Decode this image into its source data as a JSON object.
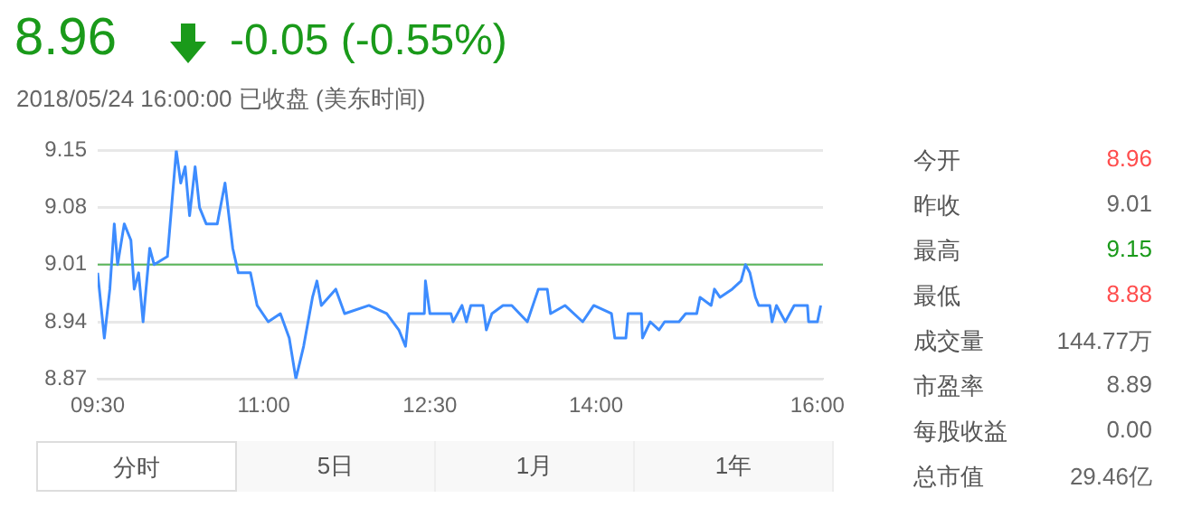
{
  "chart_data": [
    {
      "type": "line",
      "title": "8.96",
      "subtitle": "2018/05/24 16:00:00   已收盘   (美东时间)",
      "annotations": [
        "-0.05 (-0.55%)"
      ],
      "x": [
        9.5,
        9.56,
        9.61,
        9.65,
        9.68,
        9.74,
        9.8,
        9.83,
        9.87,
        9.91,
        9.97,
        10.01,
        10.13,
        10.21,
        10.25,
        10.29,
        10.33,
        10.38,
        10.42,
        10.48,
        10.58,
        10.65,
        10.72,
        10.77,
        10.88,
        10.94,
        11.04,
        11.15,
        11.23,
        11.29,
        11.36,
        11.44,
        11.48,
        11.52,
        11.65,
        11.73,
        11.95,
        12.11,
        12.22,
        12.28,
        12.31,
        12.45,
        12.46,
        12.5,
        12.69,
        12.71,
        12.79,
        12.83,
        12.87,
        12.98,
        13.01,
        13.06,
        13.16,
        13.24,
        13.38,
        13.48,
        13.56,
        13.59,
        13.72,
        13.88,
        13.98,
        14.14,
        14.17,
        14.27,
        14.29,
        14.41,
        14.42,
        14.49,
        14.57,
        14.62,
        14.75,
        14.81,
        14.91,
        14.94,
        15.04,
        15.07,
        15.12,
        15.23,
        15.31,
        15.35,
        15.39,
        15.44,
        15.47,
        15.57,
        15.59,
        15.63,
        15.71,
        15.79,
        15.91,
        15.92,
        16.0,
        16.03
      ],
      "series": [
        {
          "color": "#3d8cff",
          "values": [
            9.0,
            8.92,
            8.98,
            9.06,
            9.01,
            9.06,
            9.04,
            8.98,
            9.0,
            8.94,
            9.03,
            9.01,
            9.02,
            9.15,
            9.11,
            9.13,
            9.07,
            9.13,
            9.08,
            9.06,
            9.06,
            9.11,
            9.03,
            9.0,
            9.0,
            8.96,
            8.94,
            8.95,
            8.92,
            8.87,
            8.91,
            8.97,
            8.99,
            8.96,
            8.98,
            8.95,
            8.96,
            8.95,
            8.93,
            8.91,
            8.95,
            8.95,
            8.99,
            8.95,
            8.95,
            8.94,
            8.96,
            8.94,
            8.96,
            8.96,
            8.93,
            8.95,
            8.96,
            8.96,
            8.94,
            8.98,
            8.98,
            8.95,
            8.96,
            8.94,
            8.96,
            8.95,
            8.92,
            8.92,
            8.95,
            8.95,
            8.92,
            8.94,
            8.93,
            8.94,
            8.94,
            8.95,
            8.95,
            8.97,
            8.96,
            8.98,
            8.97,
            8.98,
            8.99,
            9.01,
            9.0,
            8.97,
            8.96,
            8.96,
            8.94,
            8.96,
            8.94,
            8.96,
            8.96,
            8.94,
            8.94,
            8.96
          ]
        }
      ],
      "xlim": [
        9.5,
        16.05
      ],
      "xticks": [
        {
          "value": 9.5,
          "label": "09:30"
        },
        {
          "value": 11,
          "label": "11:00"
        },
        {
          "value": 12.5,
          "label": "12:30"
        },
        {
          "value": 14,
          "label": "14:00"
        },
        {
          "value": 16,
          "label": "16:00"
        }
      ],
      "ylim": [
        8.87,
        9.15
      ],
      "yticks": [
        8.87,
        8.94,
        9.01,
        9.08,
        9.15
      ],
      "grid": "y",
      "legend": false,
      "marker": "none",
      "line_style": "solid",
      "ref_lines": [
        {
          "axis": "y",
          "value": 9.01,
          "color": "#5cb85c"
        }
      ]
    },
    {
      "type": "other",
      "annotations": [
        "今开",
        "8.96",
        "昨收",
        "9.01",
        "最高",
        "9.15",
        "最低",
        "8.88",
        "成交量",
        "144.77万",
        "市盈率",
        "8.89",
        "每股收益",
        "0.00",
        "总市值",
        "29.46亿"
      ],
      "colors": [
        "#ff4d4d",
        "#666666",
        "#1a9a1a",
        "#ff4d4d",
        "#666666",
        "#666666",
        "#666666",
        "#666666"
      ]
    },
    {
      "type": "other",
      "annotations": [
        "分时",
        "5日",
        "1月",
        "1年"
      ]
    }
  ]
}
